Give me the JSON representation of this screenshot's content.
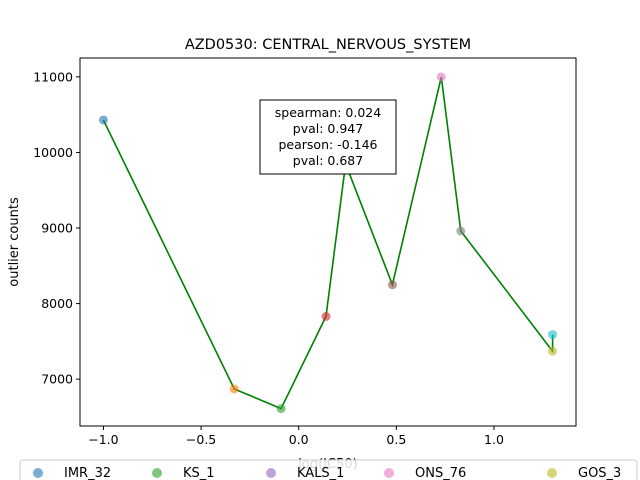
{
  "chart_data": {
    "type": "scatter",
    "title": "AZD0530: CENTRAL_NERVOUS_SYSTEM",
    "xlabel": "log(IC50)",
    "ylabel": "outlier counts",
    "xlim": [
      -1.12,
      1.42
    ],
    "ylim": [
      6380,
      11250
    ],
    "xticks": [
      -1.0,
      -0.5,
      0.0,
      0.5,
      1.0
    ],
    "xtick_labels": [
      "−1.0",
      "−0.5",
      "0.0",
      "0.5",
      "1.0"
    ],
    "yticks": [
      7000,
      8000,
      9000,
      10000,
      11000
    ],
    "ytick_labels": [
      "7000",
      "8000",
      "9000",
      "10000",
      "11000"
    ],
    "grid": false,
    "points": [
      {
        "x": -1.0,
        "y": 10430,
        "color": "#1f77b4"
      },
      {
        "x": -0.33,
        "y": 6870,
        "color": "#ff7f0e"
      },
      {
        "x": -0.09,
        "y": 6610,
        "color": "#2ca02c"
      },
      {
        "x": 0.14,
        "y": 7830,
        "color": "#d62728"
      },
      {
        "x": 0.24,
        "y": 9850,
        "color": "#9467bd"
      },
      {
        "x": 0.48,
        "y": 8250,
        "color": "#8c564b"
      },
      {
        "x": 0.73,
        "y": 11000,
        "color": "#e377c2"
      },
      {
        "x": 0.83,
        "y": 8960,
        "color": "#7f7f7f"
      },
      {
        "x": 1.3,
        "y": 7590,
        "color": "#17becf"
      },
      {
        "x": 1.3,
        "y": 7370,
        "color": "#bcbd22"
      }
    ],
    "fit_line": {
      "color": "#008000",
      "x": [
        -1.0,
        -0.33,
        -0.09,
        0.14,
        0.24,
        0.48,
        0.73,
        0.83,
        1.3,
        1.3
      ],
      "y": [
        10430,
        6870,
        6610,
        7830,
        9850,
        8250,
        11000,
        8960,
        7370,
        7590
      ]
    },
    "stats_box": {
      "lines": [
        "spearman: 0.024",
        "pval: 0.947",
        "pearson: -0.146",
        "pval: 0.687"
      ]
    },
    "legend": {
      "placement": "bottom",
      "entries": [
        {
          "label": "IMR_32",
          "color": "#1f77b4"
        },
        {
          "label": "KS_1",
          "color": "#2ca02c"
        },
        {
          "label": "KALS_1",
          "color": "#9467bd"
        },
        {
          "label": "ONS_76",
          "color": "#e377c2"
        },
        {
          "label": "GOS_3",
          "color": "#bcbd22"
        }
      ]
    }
  }
}
